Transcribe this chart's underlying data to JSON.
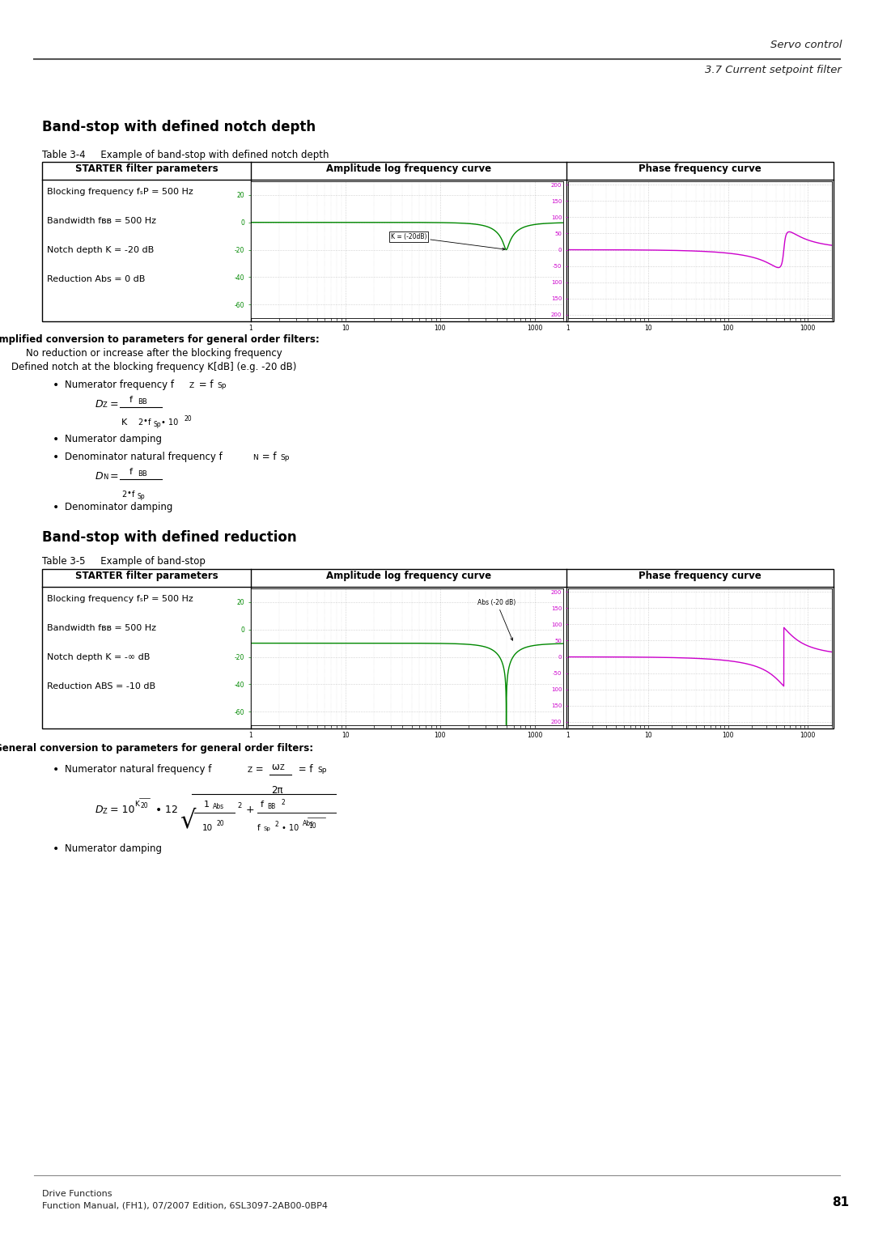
{
  "page_title_line1": "Servo control",
  "page_title_line2": "3.7 Current setpoint filter",
  "section1_title": "Band-stop with defined notch depth",
  "table1_label": "Table 3-4",
  "table1_caption": "Example of band-stop with defined notch depth",
  "table_col0": "STARTER filter parameters",
  "table_col1": "Amplitude log frequency curve",
  "table_col2": "Phase frequency curve",
  "table1_params": [
    "Blocking frequency fₛP = 500 Hz",
    "Bandwidth fʙʙ = 500 Hz",
    "Notch depth K = -20 dB",
    "Reduction Abs = 0 dB"
  ],
  "section2_title": "Band-stop with defined reduction",
  "table2_label": "Table 3-5",
  "table2_caption": "Example of band-stop",
  "table2_params": [
    "Blocking frequency fₛP = 500 Hz",
    "Bandwidth fʙʙ = 500 Hz",
    "Notch depth K = -∞ dB",
    "Reduction ABS = -10 dB"
  ],
  "footer_line1": "Drive Functions",
  "footer_line2": "Function Manual, (FH1), 07/2007 Edition, 6SL3097-2AB00-0BP4",
  "footer_page": "81",
  "bg_color": "#ffffff",
  "green_color": "#008800",
  "magenta_color": "#cc00cc"
}
